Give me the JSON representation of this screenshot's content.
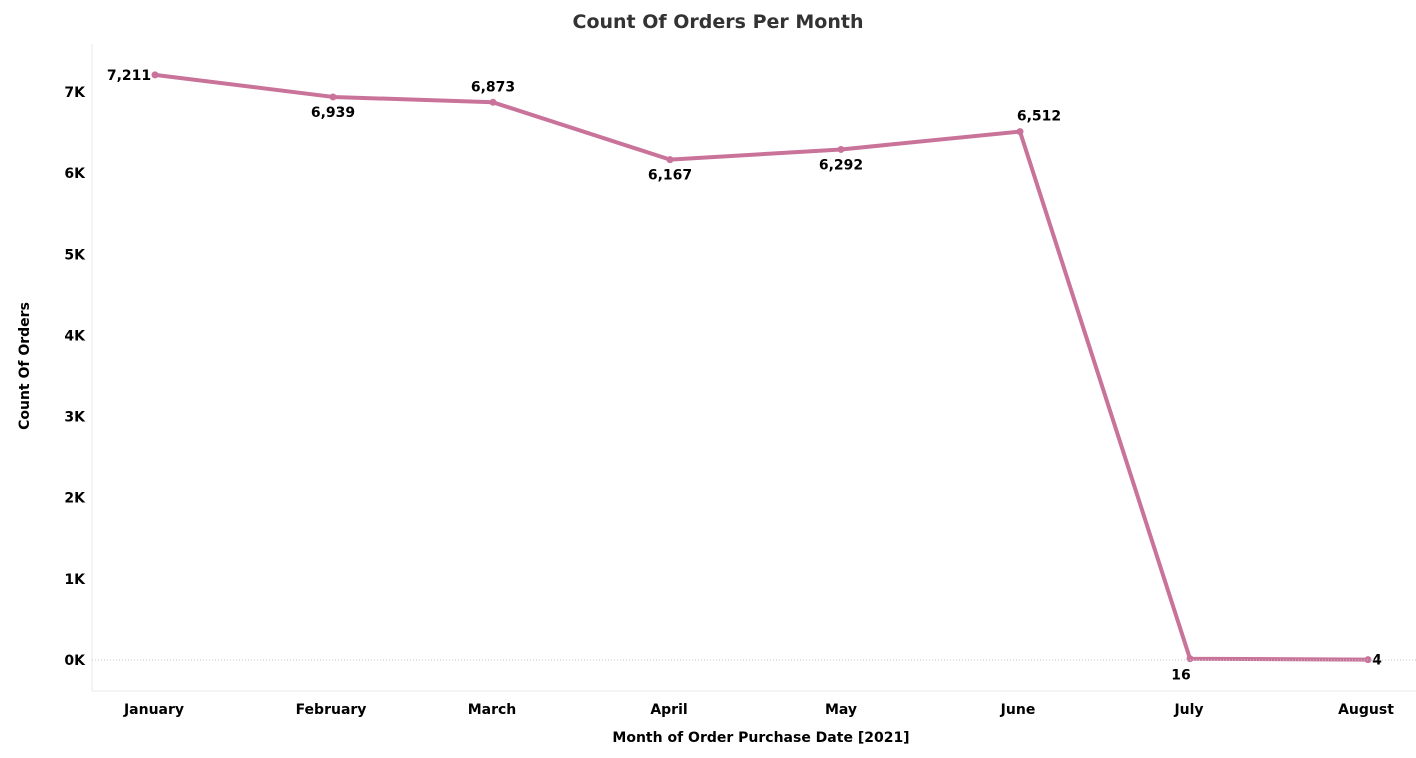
{
  "chart_data": {
    "type": "line",
    "title": "Count Of Orders Per Month",
    "xlabel": "Month of Order Purchase Date [2021]",
    "ylabel": "Count Of Orders",
    "categories": [
      "January",
      "February",
      "March",
      "April",
      "May",
      "June",
      "July",
      "August"
    ],
    "series": [
      {
        "values": [
          7211,
          6939,
          6873,
          6167,
          6292,
          6512,
          16,
          4
        ],
        "data_labels": [
          "7,211",
          "6,939",
          "6,873",
          "6,167",
          "6,292",
          "6,512",
          "16",
          "4"
        ]
      }
    ],
    "y_ticks": [
      0,
      1000,
      2000,
      3000,
      4000,
      5000,
      6000,
      7000
    ],
    "y_tick_labels": [
      "0K",
      "1K",
      "2K",
      "3K",
      "4K",
      "5K",
      "6K",
      "7K"
    ],
    "ylim": [
      0,
      7211
    ],
    "grid": false,
    "zero_line": "dotted",
    "colors": {
      "line": "#c9739a",
      "text": "#000000",
      "title": "#333333",
      "axis": "#e6e6e6"
    }
  }
}
